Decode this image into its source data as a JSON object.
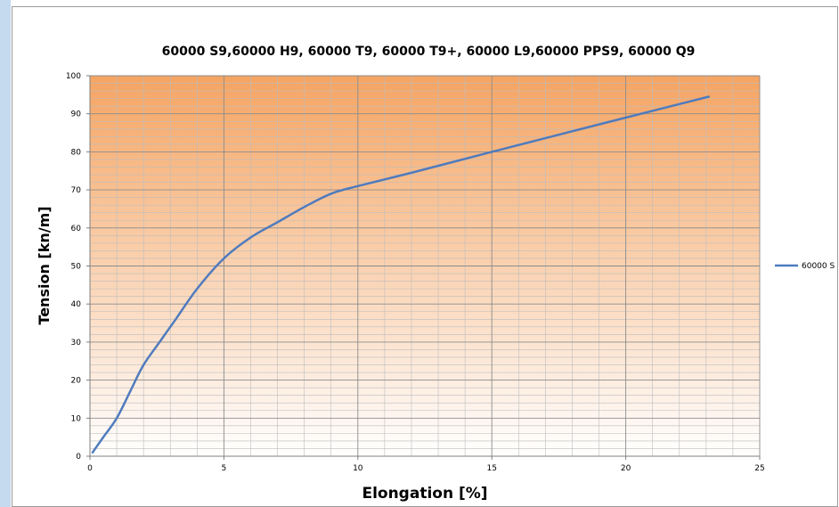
{
  "colors": {
    "line": "#4f7bbd",
    "plot_top": "#f5a462",
    "plot_bottom": "#ffffff",
    "grid_major": "#8c8c8c",
    "grid_minor": "#bdbdbd",
    "sidebar": "#c5d9ef"
  },
  "chart_data": {
    "type": "line",
    "title": "60000 S9,60000  H9, 60000  T9, 60000  T9+, 60000  L9,60000  PPS9, 60000  Q9",
    "xlabel": "Elongation [%]",
    "ylabel": "Tension [kn/m]",
    "xlim": [
      0,
      25
    ],
    "ylim": [
      0,
      100
    ],
    "x_ticks": [
      0,
      5,
      10,
      15,
      20,
      25
    ],
    "y_ticks": [
      0,
      10,
      20,
      30,
      40,
      50,
      60,
      70,
      80,
      90,
      100
    ],
    "grid": true,
    "legend_position": "right",
    "series": [
      {
        "name": "60000 S",
        "x": [
          0.1,
          0.5,
          1.0,
          1.5,
          2.0,
          2.6,
          3.2,
          4.0,
          5.0,
          6.0,
          7.0,
          8.0,
          9.0,
          10.0,
          12.0,
          15.0,
          20.0,
          23.1
        ],
        "y": [
          1,
          5,
          10,
          17,
          24,
          30,
          36,
          44,
          52,
          57.5,
          61.5,
          65.5,
          69,
          71,
          74.5,
          80,
          89,
          94.5
        ]
      }
    ]
  }
}
